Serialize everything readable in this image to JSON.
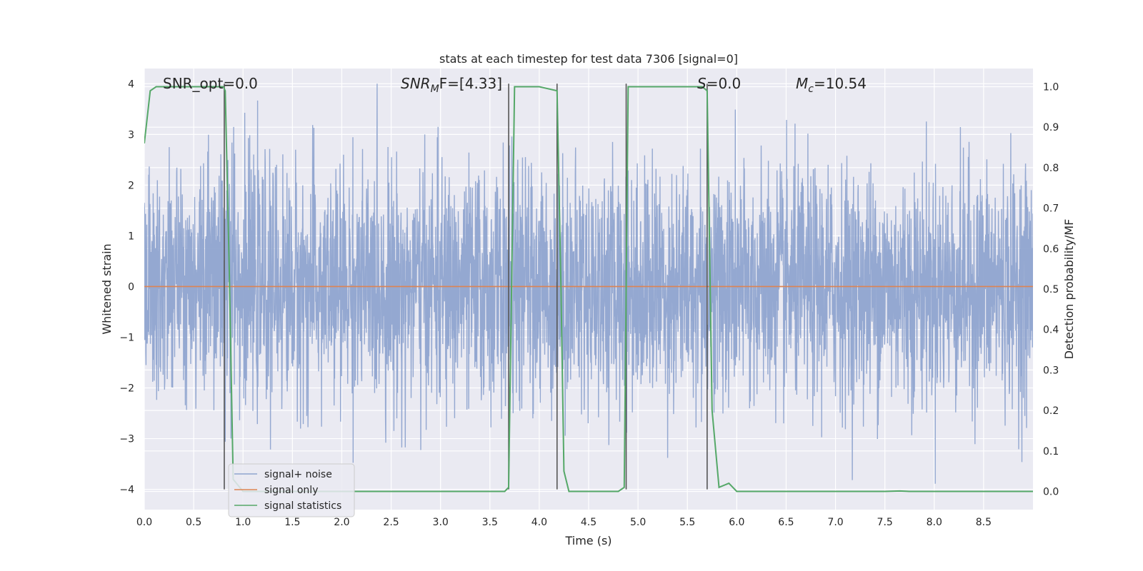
{
  "chart_data": {
    "type": "line",
    "title": "stats at each timestep for test data 7306 [signal=0]",
    "xlabel": "Time (s)",
    "ylabel": "Whitened strain",
    "y2label": "Detection probability/MF",
    "xlim": [
      0,
      9
    ],
    "ylim": [
      -4.4,
      4.3
    ],
    "y2lim": [
      -0.045,
      1.045
    ],
    "xticks": [
      "0.0",
      "0.5",
      "1.0",
      "1.5",
      "2.0",
      "2.5",
      "3.0",
      "3.5",
      "4.0",
      "4.5",
      "5.0",
      "5.5",
      "6.0",
      "6.5",
      "7.0",
      "7.5",
      "8.0",
      "8.5"
    ],
    "yticks": [
      "−4",
      "−3",
      "−2",
      "−1",
      "0",
      "1",
      "2",
      "3",
      "4"
    ],
    "y2ticks": [
      "0.0",
      "0.1",
      "0.2",
      "0.3",
      "0.4",
      "0.5",
      "0.6",
      "0.7",
      "0.8",
      "0.9",
      "1.0"
    ],
    "grid": true,
    "legend_position": "lower-left",
    "annotations": {
      "snr_opt": "SNR_opt=0.0",
      "snr_mf_sym": "SNR",
      "snr_mf_sub": "M",
      "snr_mf_rest": "F=[4.33]",
      "s_sym": "S",
      "s_rest": "=0.0",
      "mc_sym": "M",
      "mc_sub": "c",
      "mc_rest": "=10.54"
    },
    "colors": {
      "noise": "#8fa4cf",
      "signal": "#dd8452",
      "stats": "#55a868",
      "vline": "#555555",
      "plot_bg": "#eaeaf2",
      "grid": "#ffffff"
    },
    "series": [
      {
        "name": "signal+ noise",
        "note_description": "whitened noise strain, amplitude approx within [-4, 4]",
        "envelope_y": [
          -4,
          4
        ]
      },
      {
        "name": "signal only",
        "x": [
          0,
          9
        ],
        "y": [
          0,
          0
        ]
      },
      {
        "name": "signal statistics",
        "x": [
          0.0,
          0.06,
          0.12,
          0.2,
          0.8,
          0.82,
          0.86,
          0.9,
          1.0,
          3.6,
          3.65,
          3.69,
          3.75,
          4.0,
          4.18,
          4.22,
          4.25,
          4.3,
          4.55,
          4.8,
          4.86,
          4.9,
          5.5,
          5.65,
          5.7,
          5.75,
          5.82,
          5.92,
          6.0,
          6.1,
          7.5,
          7.65,
          7.75,
          9.0
        ],
        "y": [
          0.86,
          0.99,
          1.0,
          1.0,
          1.0,
          0.99,
          0.55,
          0.03,
          0.0,
          0.0,
          0.0,
          0.01,
          1.0,
          1.0,
          0.99,
          0.5,
          0.05,
          0.0,
          0.0,
          0.0,
          0.01,
          1.0,
          1.0,
          1.0,
          0.99,
          0.2,
          0.01,
          0.02,
          0.0,
          0.0,
          0.0,
          0.001,
          0.0,
          0.0
        ]
      }
    ],
    "vertical_lines": [
      {
        "x": 0.81,
        "y1": -4.0,
        "y2": 4.0
      },
      {
        "x": 3.69,
        "y1": -4.0,
        "y2": 4.0
      },
      {
        "x": 4.18,
        "y1": -4.0,
        "y2": 4.0
      },
      {
        "x": 4.88,
        "y1": -4.0,
        "y2": 4.0
      },
      {
        "x": 5.7,
        "y1": -4.0,
        "y2": 4.0
      }
    ]
  }
}
